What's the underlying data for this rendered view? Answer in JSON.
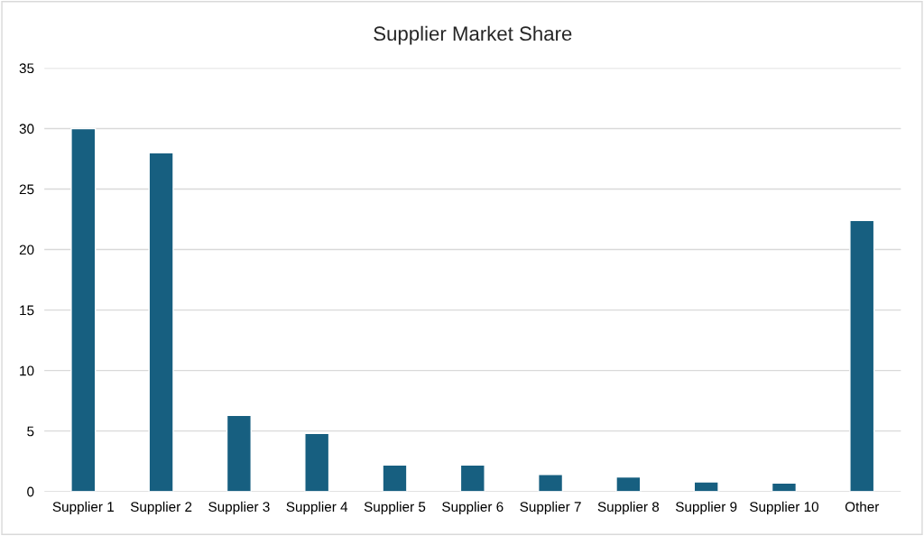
{
  "chart_data": {
    "type": "bar",
    "title": "Supplier Market Share",
    "categories": [
      "Supplier 1",
      "Supplier 2",
      "Supplier 3",
      "Supplier 4",
      "Supplier 5",
      "Supplier 6",
      "Supplier 7",
      "Supplier 8",
      "Supplier 9",
      "Supplier 10",
      "Other"
    ],
    "values": [
      30,
      28,
      6.3,
      4.8,
      2.2,
      2.2,
      1.4,
      1.2,
      0.8,
      0.7,
      22.4
    ],
    "color": "#175f80",
    "ylim": [
      0,
      35
    ],
    "yticks": [
      0,
      5,
      10,
      15,
      20,
      25,
      30,
      35
    ],
    "grid": "y"
  }
}
